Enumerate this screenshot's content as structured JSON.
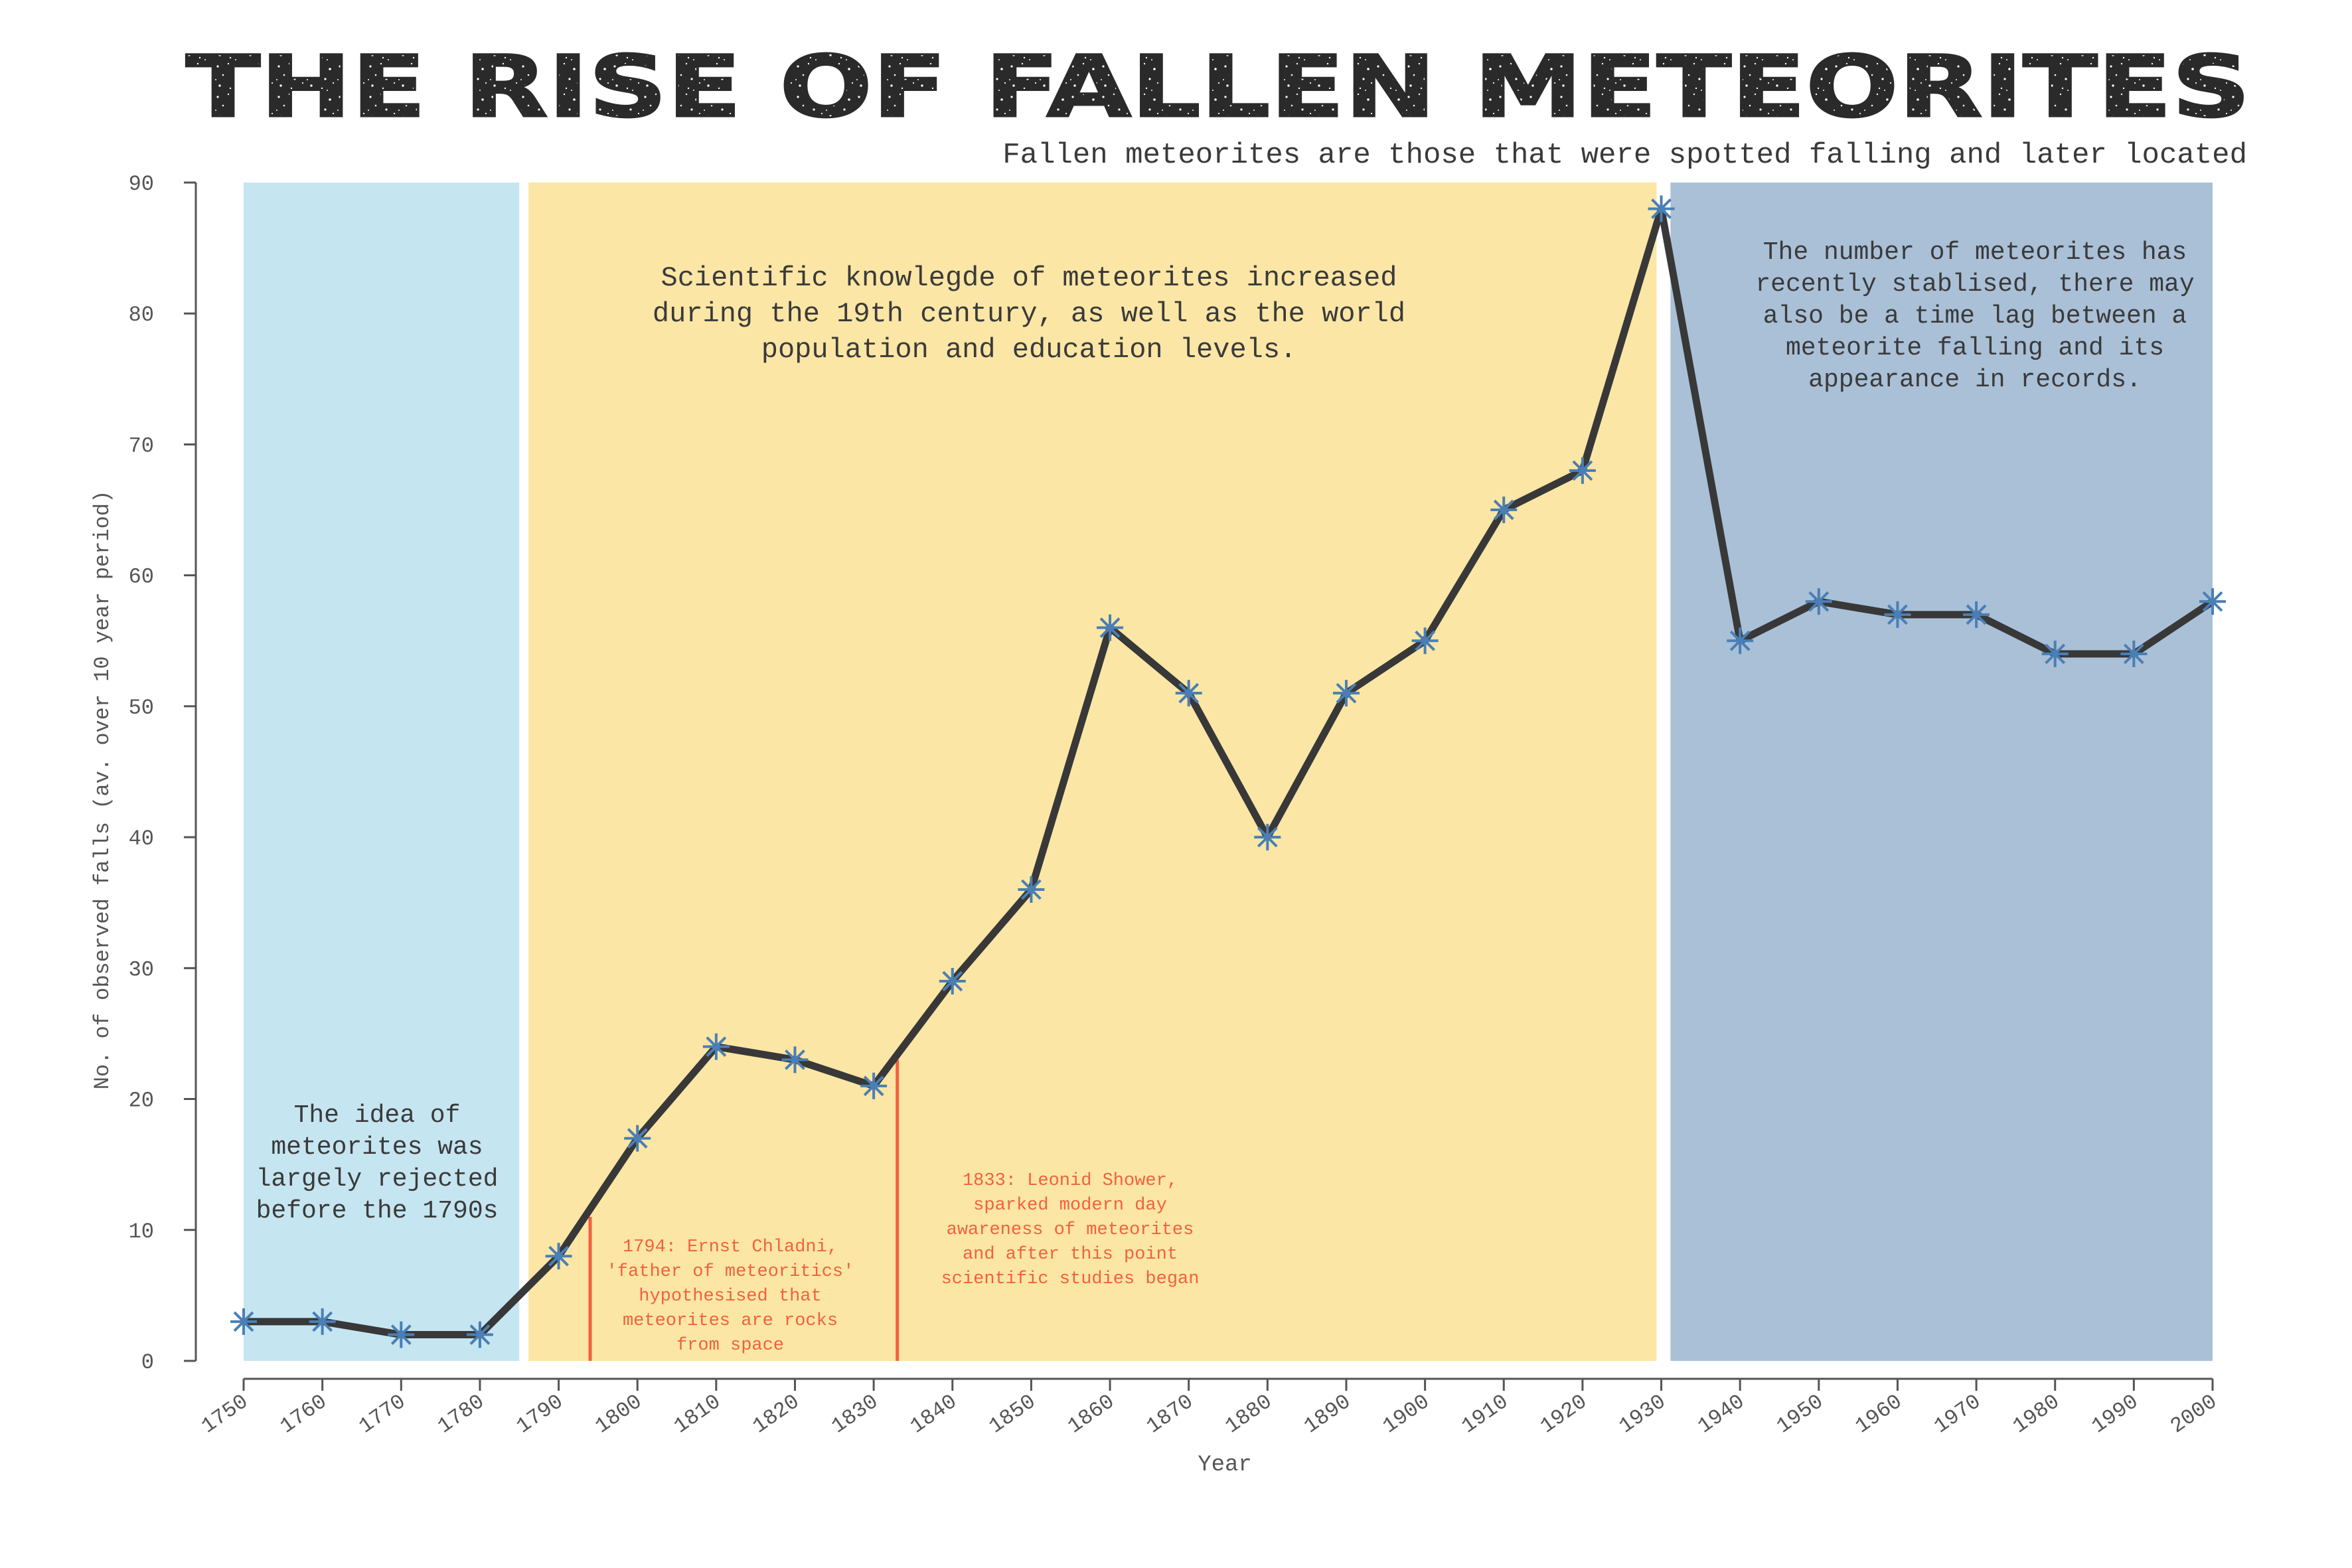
{
  "title": "THE RISE OF FALLEN METEORITES",
  "subtitle": "Fallen meteorites are those that were spotted falling and later located",
  "colors": {
    "line": "#383838",
    "marker": "#4a7fb5",
    "band_early": "#c5e5f1",
    "band_middle": "#fbe6a5",
    "band_late": "#a9c0d7",
    "event_line": "#f2613f",
    "text": "#3a3a3a",
    "axis": "#555555"
  },
  "chart_data": {
    "type": "line",
    "xlabel": "Year",
    "ylabel": "No. of observed falls (av. over 10 year period)",
    "xlim": [
      1750,
      2000
    ],
    "ylim": [
      0,
      90
    ],
    "xticks": [
      1750,
      1760,
      1770,
      1780,
      1790,
      1800,
      1810,
      1820,
      1830,
      1840,
      1850,
      1860,
      1870,
      1880,
      1890,
      1900,
      1910,
      1920,
      1930,
      1940,
      1950,
      1960,
      1970,
      1980,
      1990,
      2000
    ],
    "yticks": [
      0,
      10,
      20,
      30,
      40,
      50,
      60,
      70,
      80,
      90
    ],
    "grid": false,
    "series": [
      {
        "x": [
          1750,
          1760,
          1770,
          1780,
          1790,
          1800,
          1810,
          1820,
          1830,
          1840,
          1850,
          1860,
          1870,
          1880,
          1890,
          1900,
          1910,
          1920,
          1930,
          1940,
          1950,
          1960,
          1970,
          1980,
          1990,
          2000
        ],
        "y": [
          3,
          3,
          2,
          2,
          8,
          17,
          24,
          23,
          21,
          29,
          36,
          56,
          51,
          40,
          51,
          55,
          65,
          68,
          88,
          55,
          58,
          57,
          57,
          54,
          54,
          58
        ]
      }
    ],
    "bands": [
      {
        "from": 1750,
        "to": 1785,
        "color_key": "band_early",
        "text": [
          "The idea of",
          "meteorites was",
          "largely rejected",
          "before the 1790s"
        ]
      },
      {
        "from": 1786,
        "to": 1930,
        "color_key": "band_middle",
        "text": [
          "Scientific knowlegde of meteorites increased",
          "during the 19th century, as well as the world",
          "population and education levels."
        ]
      },
      {
        "from": 1931,
        "to": 2000,
        "color_key": "band_late",
        "text": [
          "The number of meteorites has",
          "recently stablised, there may",
          "also be a time lag between a",
          "meteorite falling and its",
          "appearance in records."
        ]
      }
    ],
    "events": [
      {
        "x": 1794,
        "top": 11,
        "text": [
          "1794: Ernst Chladni,",
          "'father of meteoritics'",
          "hypothesised that",
          "meteorites are rocks",
          "from space"
        ]
      },
      {
        "x": 1833,
        "top": 23,
        "text": [
          "1833: Leonid Shower,",
          "sparked modern day",
          "awareness of meteorites",
          "and after this point",
          "scientific studies began"
        ]
      }
    ]
  }
}
